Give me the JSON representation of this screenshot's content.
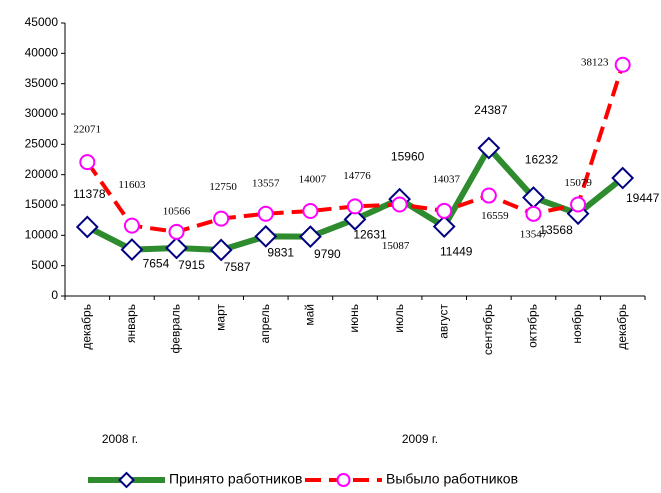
{
  "chart_data": {
    "type": "line",
    "categories": [
      "декабрь",
      "январь",
      "февраль",
      "март",
      "апрель",
      "май",
      "июнь",
      "июль",
      "август",
      "сентябрь",
      "октябрь",
      "ноябрь",
      "декабрь"
    ],
    "series": [
      {
        "name": "Принято работников",
        "color": "#2e8b2e",
        "marker_color": "#000080",
        "values": [
          11378,
          7654,
          7915,
          7587,
          9831,
          9790,
          12631,
          15960,
          11449,
          24387,
          16232,
          13568,
          19447
        ]
      },
      {
        "name": "Выбыло работников",
        "color": "#ff0000",
        "marker_color": "#ff00ff",
        "values": [
          22071,
          11603,
          10566,
          12750,
          13557,
          14007,
          14776,
          15087,
          14037,
          16559,
          13547,
          15079,
          38123
        ]
      }
    ],
    "ylim": [
      0,
      45000
    ],
    "yticks": [
      0,
      5000,
      10000,
      15000,
      20000,
      25000,
      30000,
      35000,
      40000,
      45000
    ],
    "annotations": [
      "2008 г.",
      "2009 г."
    ]
  }
}
